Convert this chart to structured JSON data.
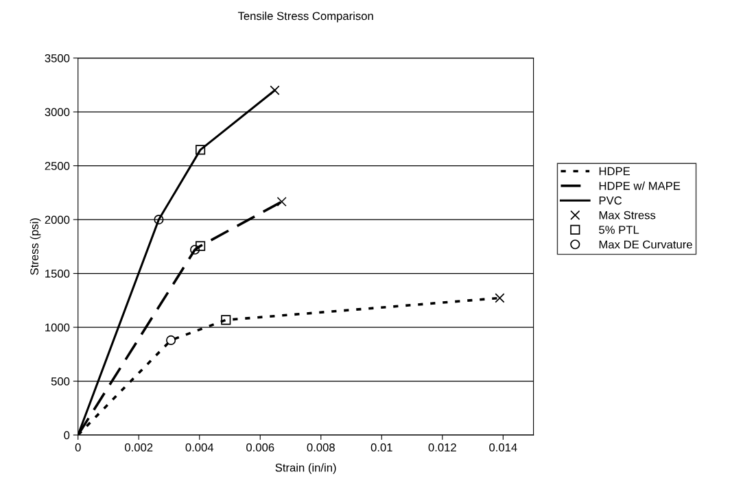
{
  "chart_data": {
    "type": "line",
    "title": "Tensile Stress Comparison",
    "xlabel": "Strain (in/in)",
    "ylabel": "Stress (psi)",
    "xlim": [
      0,
      0.015
    ],
    "xticks": [
      0,
      0.002,
      0.004,
      0.006,
      0.008,
      0.01,
      0.012,
      0.014
    ],
    "ylim": [
      0,
      3500
    ],
    "yticks": [
      0,
      500,
      1000,
      1500,
      2000,
      2500,
      3000,
      3500
    ],
    "grid": "y",
    "legend": "right",
    "series": [
      {
        "name": "HDPE",
        "color": "#000000",
        "line_style": "dotted",
        "marker": "none",
        "x": [
          0,
          0.00306,
          0.00487,
          0.01389
        ],
        "values": [
          0,
          880,
          1068,
          1272
        ]
      },
      {
        "name": "HDPE w/ MAPE",
        "color": "#000000",
        "line_style": "dashed",
        "marker": "none",
        "x": [
          0,
          0.00385,
          0.00403,
          0.00671
        ],
        "values": [
          0,
          1720,
          1755,
          2166
        ]
      },
      {
        "name": "PVC",
        "color": "#000000",
        "line_style": "solid",
        "marker": "none",
        "x": [
          0,
          0.00266,
          0.00403,
          0.00648
        ],
        "values": [
          0,
          2000,
          2648,
          3200
        ]
      },
      {
        "name": "Max Stress",
        "type": "scatter",
        "color": "#000000",
        "marker": "cross",
        "x": [
          0.01389,
          0.00671,
          0.00648
        ],
        "values": [
          1272,
          2166,
          3200
        ]
      },
      {
        "name": "5% PTL",
        "type": "scatter",
        "color": "#000000",
        "marker": "square",
        "x": [
          0.00487,
          0.00403,
          0.00403
        ],
        "values": [
          1068,
          1755,
          2648
        ]
      },
      {
        "name": "Max DE Curvature",
        "type": "scatter",
        "color": "#000000",
        "marker": "circle",
        "x": [
          0.00306,
          0.00385,
          0.00266
        ],
        "values": [
          880,
          1720,
          2000
        ]
      }
    ]
  }
}
